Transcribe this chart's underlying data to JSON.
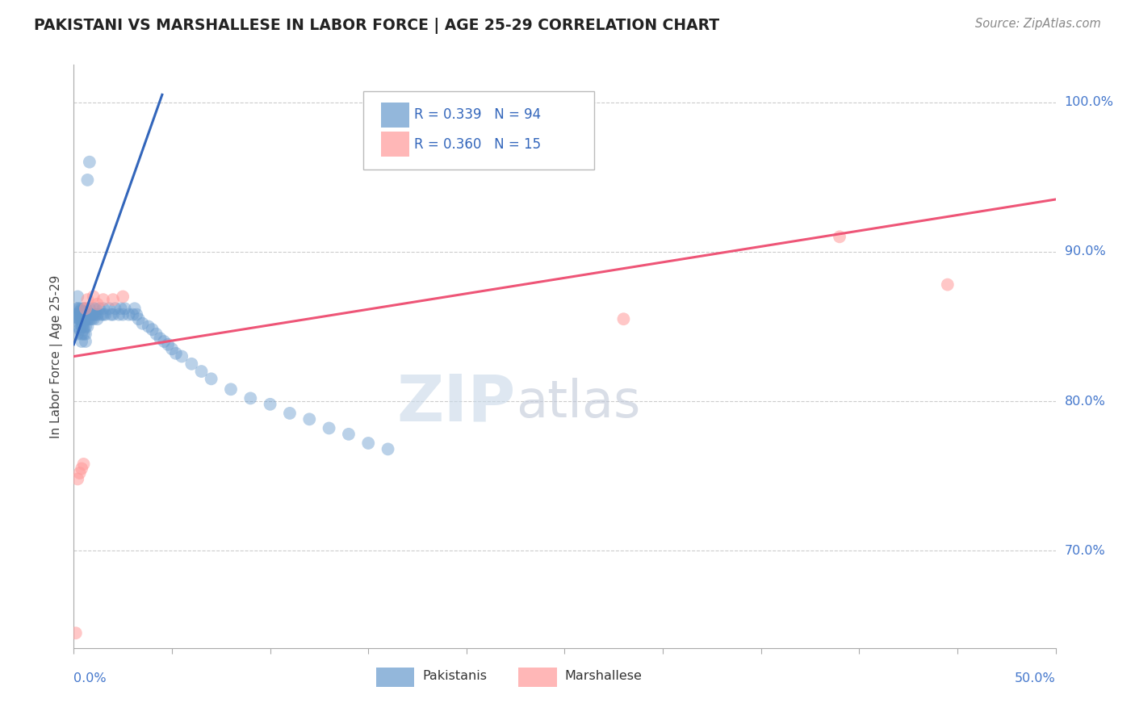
{
  "title": "PAKISTANI VS MARSHALLESE IN LABOR FORCE | AGE 25-29 CORRELATION CHART",
  "source": "Source: ZipAtlas.com",
  "ylabel": "In Labor Force | Age 25-29",
  "ytick_labels": [
    "70.0%",
    "80.0%",
    "90.0%",
    "100.0%"
  ],
  "ytick_values": [
    0.7,
    0.8,
    0.9,
    1.0
  ],
  "xlim": [
    0.0,
    0.5
  ],
  "ylim": [
    0.635,
    1.025
  ],
  "blue_color": "#6699CC",
  "pink_color": "#FF9999",
  "trend_blue": "#3366BB",
  "trend_pink": "#EE5577",
  "pakistani_x": [
    0.001,
    0.001,
    0.001,
    0.002,
    0.002,
    0.002,
    0.002,
    0.002,
    0.003,
    0.003,
    0.003,
    0.003,
    0.003,
    0.003,
    0.003,
    0.004,
    0.004,
    0.004,
    0.004,
    0.004,
    0.004,
    0.004,
    0.004,
    0.004,
    0.005,
    0.005,
    0.005,
    0.005,
    0.005,
    0.005,
    0.005,
    0.006,
    0.006,
    0.006,
    0.006,
    0.006,
    0.006,
    0.007,
    0.007,
    0.007,
    0.007,
    0.008,
    0.008,
    0.008,
    0.008,
    0.009,
    0.009,
    0.01,
    0.01,
    0.01,
    0.011,
    0.011,
    0.012,
    0.012,
    0.013,
    0.014,
    0.015,
    0.015,
    0.016,
    0.018,
    0.019,
    0.02,
    0.021,
    0.023,
    0.024,
    0.025,
    0.026,
    0.028,
    0.03,
    0.031,
    0.032,
    0.033,
    0.035,
    0.038,
    0.04,
    0.042,
    0.044,
    0.046,
    0.048,
    0.05,
    0.052,
    0.055,
    0.06,
    0.065,
    0.07,
    0.08,
    0.09,
    0.1,
    0.11,
    0.12,
    0.13,
    0.14,
    0.15,
    0.16
  ],
  "pakistani_y": [
    0.856,
    0.862,
    0.858,
    0.87,
    0.858,
    0.862,
    0.85,
    0.845,
    0.855,
    0.86,
    0.848,
    0.852,
    0.858,
    0.862,
    0.855,
    0.858,
    0.862,
    0.855,
    0.85,
    0.845,
    0.84,
    0.858,
    0.852,
    0.86,
    0.855,
    0.858,
    0.862,
    0.85,
    0.845,
    0.848,
    0.852,
    0.858,
    0.862,
    0.855,
    0.85,
    0.845,
    0.84,
    0.858,
    0.855,
    0.85,
    0.948,
    0.862,
    0.858,
    0.855,
    0.96,
    0.858,
    0.855,
    0.862,
    0.858,
    0.855,
    0.858,
    0.862,
    0.855,
    0.858,
    0.862,
    0.858,
    0.862,
    0.858,
    0.858,
    0.862,
    0.858,
    0.858,
    0.862,
    0.858,
    0.862,
    0.858,
    0.862,
    0.858,
    0.858,
    0.862,
    0.858,
    0.855,
    0.852,
    0.85,
    0.848,
    0.845,
    0.842,
    0.84,
    0.838,
    0.835,
    0.832,
    0.83,
    0.825,
    0.82,
    0.815,
    0.808,
    0.802,
    0.798,
    0.792,
    0.788,
    0.782,
    0.778,
    0.772,
    0.768
  ],
  "marshallese_x": [
    0.001,
    0.002,
    0.003,
    0.004,
    0.005,
    0.006,
    0.007,
    0.01,
    0.012,
    0.015,
    0.02,
    0.025,
    0.28,
    0.39,
    0.445
  ],
  "marshallese_y": [
    0.645,
    0.748,
    0.752,
    0.755,
    0.758,
    0.862,
    0.868,
    0.87,
    0.865,
    0.868,
    0.868,
    0.87,
    0.855,
    0.91,
    0.878
  ],
  "watermark_zip": "ZIP",
  "watermark_atlas": "atlas",
  "grid_color": "#CCCCCC",
  "background_color": "#FFFFFF",
  "legend_text": [
    [
      "R = 0.339",
      "N = 94"
    ],
    [
      "R = 0.360",
      "N = 15"
    ]
  ]
}
